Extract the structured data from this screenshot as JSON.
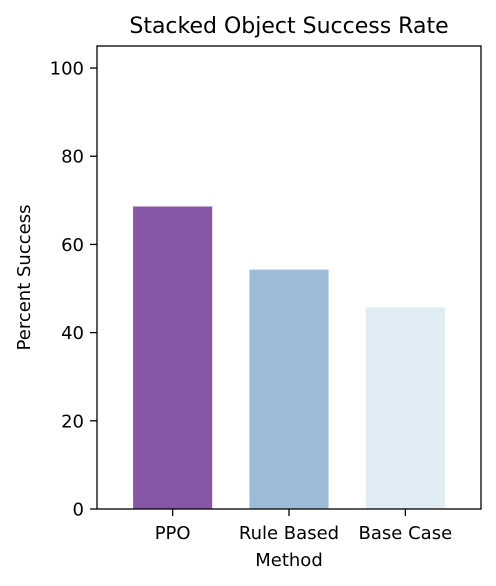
{
  "chart_data": {
    "type": "bar",
    "title": "Stacked Object Success Rate",
    "xlabel": "Method",
    "ylabel": "Percent Success",
    "categories": [
      "PPO",
      "Rule Based",
      "Base Case"
    ],
    "values": [
      68.6,
      54.3,
      45.7
    ],
    "colors": [
      "#8856a7",
      "#9ebcda",
      "#e0ecf4"
    ],
    "ylim": [
      0,
      105
    ],
    "yticks": [
      0,
      20,
      40,
      60,
      80,
      100
    ],
    "grid": false,
    "legend": "none"
  }
}
